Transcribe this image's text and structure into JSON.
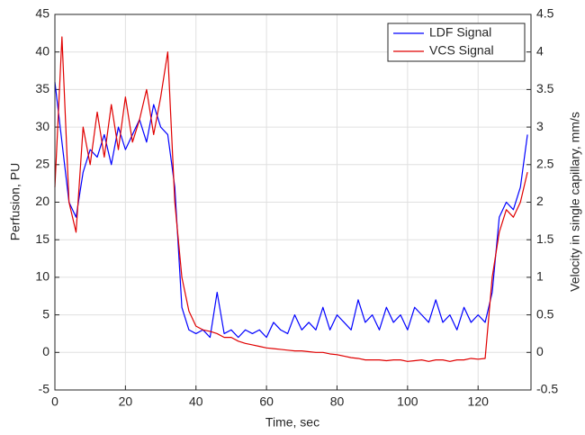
{
  "chart_data": {
    "type": "line",
    "x_label": "Time, sec",
    "y_label": "Perfusion, PU",
    "y2_label": "Velocity in single capillary, mm/s",
    "x": [
      0,
      2,
      4,
      6,
      8,
      10,
      12,
      14,
      16,
      18,
      20,
      22,
      24,
      26,
      28,
      30,
      32,
      34,
      36,
      38,
      40,
      42,
      44,
      46,
      48,
      50,
      52,
      54,
      56,
      58,
      60,
      62,
      64,
      66,
      68,
      70,
      72,
      74,
      76,
      78,
      80,
      82,
      84,
      86,
      88,
      90,
      92,
      94,
      96,
      98,
      100,
      102,
      104,
      106,
      108,
      110,
      112,
      114,
      116,
      118,
      120,
      122,
      124,
      126,
      128,
      130,
      132,
      134
    ],
    "series": [
      {
        "name": "LDF Signal",
        "color": "#0000ff",
        "axis": "y",
        "values": [
          36,
          28,
          20,
          18,
          24,
          27,
          26,
          29,
          25,
          30,
          27,
          29,
          31,
          28,
          33,
          30,
          29,
          22,
          6,
          3,
          2.5,
          3,
          2,
          8,
          2.5,
          3,
          2,
          3,
          2.5,
          3,
          2,
          4,
          3,
          2.5,
          5,
          3,
          4,
          3,
          6,
          3,
          5,
          4,
          3,
          7,
          4,
          5,
          3,
          6,
          4,
          5,
          3,
          6,
          5,
          4,
          7,
          4,
          5,
          3,
          6,
          4,
          5,
          4,
          8,
          18,
          20,
          19,
          22,
          29
        ]
      },
      {
        "name": "VCS Signal",
        "color": "#e00000",
        "axis": "y2",
        "values": [
          2.2,
          4.2,
          2.0,
          1.6,
          3.0,
          2.5,
          3.2,
          2.6,
          3.3,
          2.7,
          3.4,
          2.8,
          3.1,
          3.5,
          2.9,
          3.4,
          4.0,
          2.0,
          1.0,
          0.55,
          0.35,
          0.3,
          0.28,
          0.25,
          0.2,
          0.2,
          0.15,
          0.12,
          0.1,
          0.08,
          0.06,
          0.05,
          0.04,
          0.03,
          0.02,
          0.02,
          0.01,
          0,
          0,
          -0.02,
          -0.03,
          -0.05,
          -0.07,
          -0.08,
          -0.1,
          -0.1,
          -0.1,
          -0.11,
          -0.1,
          -0.1,
          -0.12,
          -0.11,
          -0.1,
          -0.12,
          -0.1,
          -0.1,
          -0.12,
          -0.1,
          -0.1,
          -0.08,
          -0.09,
          -0.08,
          1.0,
          1.6,
          1.9,
          1.8,
          2.0,
          2.4
        ]
      }
    ],
    "xlim": [
      0,
      135
    ],
    "xticks": [
      0,
      20,
      40,
      60,
      80,
      100,
      120
    ],
    "ylim": [
      -5,
      45
    ],
    "yticks": [
      -5,
      0,
      5,
      10,
      15,
      20,
      25,
      30,
      35,
      40,
      45
    ],
    "y2lim": [
      -0.5,
      4.5
    ],
    "y2ticks": [
      -0.5,
      0,
      0.5,
      1,
      1.5,
      2,
      2.5,
      3,
      3.5,
      4,
      4.5
    ],
    "grid": true,
    "legend": "upper right"
  }
}
